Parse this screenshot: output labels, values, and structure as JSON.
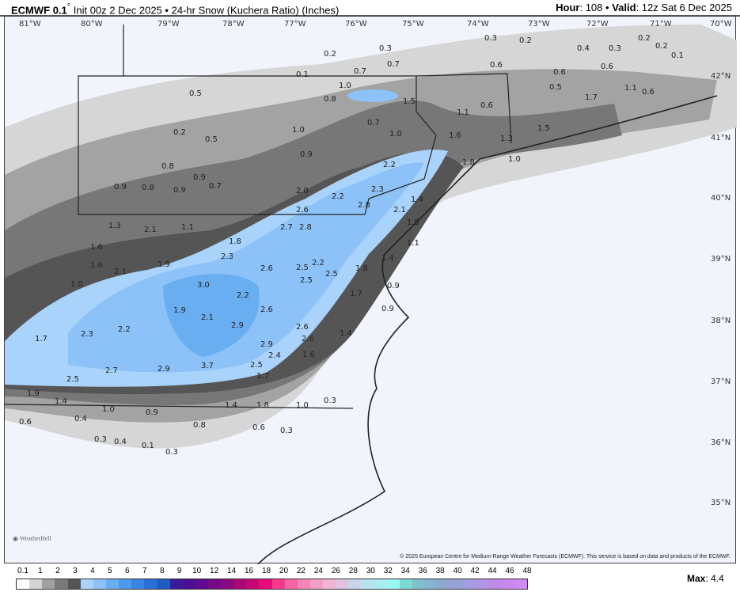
{
  "header": {
    "model": "ECMWF 0.1",
    "model_sup": "°",
    "init": "Init 00z 2 Dec 2025",
    "sep": "•",
    "product": "24-hr Snow (Kuchera Ratio) (Inches)",
    "hour_label": "Hour",
    "hour": "108",
    "valid_label": "Valid",
    "valid": "12z Sat 6 Dec 2025"
  },
  "map": {
    "lon_ticks": [
      "81°W",
      "80°W",
      "79°W",
      "78°W",
      "77°W",
      "76°W",
      "75°W",
      "74°W",
      "73°W",
      "72°W",
      "71°W",
      "70°W"
    ],
    "lat_ticks": [
      "42°N",
      "41°N",
      "40°N",
      "39°N",
      "38°N",
      "37°N",
      "36°N",
      "35°N"
    ],
    "values": [
      "0.3",
      "0.2",
      "0.1",
      "0.7",
      "0.7",
      "0.3",
      "0.6",
      "0.2",
      "0.4",
      "0.3",
      "0.2",
      "0.1",
      "1.0",
      "0.8",
      "1.5",
      "1.1",
      "0.6",
      "0.5",
      "0.6",
      "1.7",
      "1.1",
      "0.2",
      "0.5",
      "0.6",
      "0.6",
      "1.0",
      "0.7",
      "1.0",
      "1.6",
      "1.3",
      "1.5",
      "0.9",
      "1.4",
      "0.2",
      "0.8",
      "0.9",
      "2.2",
      "1.8",
      "1.0",
      "0.5",
      "0.9",
      "0.8",
      "0.9",
      "0.7",
      "2.0",
      "2.2",
      "2.3",
      "2.8",
      "2.6",
      "2.1",
      "1.3",
      "2.1",
      "1.1",
      "1.8",
      "2.7",
      "2.8",
      "1.5",
      "1.6",
      "2.3",
      "2.2",
      "2.5",
      "1.1",
      "1.6",
      "2.1",
      "1.9",
      "2.6",
      "2.5",
      "1.8",
      "1.4",
      "1.0",
      "3.0",
      "2.2",
      "2.5",
      "1.7",
      "0.9",
      "1.9",
      "2.1",
      "2.6",
      "2.6",
      "0.9",
      "1.7",
      "2.3",
      "2.2",
      "2.9",
      "2.6",
      "1.4",
      "2.9",
      "2.4",
      "1.6",
      "2.5",
      "2.7",
      "2.9",
      "3.7",
      "2.5",
      "1.7",
      "1.9",
      "1.4",
      "1.0",
      "0.9",
      "1.4",
      "1.8",
      "1.0",
      "0.3",
      "0.6",
      "0.4",
      "0.8",
      "0.6",
      "0.3",
      "0.3",
      "0.4",
      "0.1",
      "0.3"
    ],
    "logo": "WEATHERBELL"
  },
  "copyright": "© 2025 European Centre for Medium-Range Weather Forecasts (ECMWF). This service is based on data and products of the ECMWF.",
  "colorbar": {
    "labels": [
      "0.1",
      "1",
      "2",
      "3",
      "4",
      "5",
      "6",
      "7",
      "8",
      "9",
      "10",
      "12",
      "14",
      "16",
      "18",
      "20",
      "22",
      "24",
      "26",
      "28",
      "30",
      "32",
      "34",
      "36",
      "38",
      "40",
      "42",
      "44",
      "46",
      "48"
    ],
    "colors": [
      "#ffffff",
      "#d4d4d4",
      "#a0a0a0",
      "#7a7a7a",
      "#555555",
      "#a9d3fb",
      "#8cc2f7",
      "#6aaef2",
      "#4d99ec",
      "#3a85e4",
      "#2a6fd6",
      "#1f5bc4",
      "#3a1a9a",
      "#4c0f93",
      "#5e0b8f",
      "#750a86",
      "#8c087e",
      "#a9077a",
      "#c70777",
      "#e50b7c",
      "#f23a8e",
      "#f565a5",
      "#f585b8",
      "#f2a0c8",
      "#eeb6d4",
      "#dfc3e0",
      "#c9d3ea",
      "#b6e3f0",
      "#a6eef3",
      "#98f6f3",
      "#7fd9d3",
      "#80c0cc",
      "#86b3cf",
      "#8ea8d2",
      "#98a0d8",
      "#a59be0",
      "#b293e6",
      "#bd8aea",
      "#c987f0",
      "#d08af5"
    ],
    "max_label": "Max",
    "max": "4.4"
  }
}
